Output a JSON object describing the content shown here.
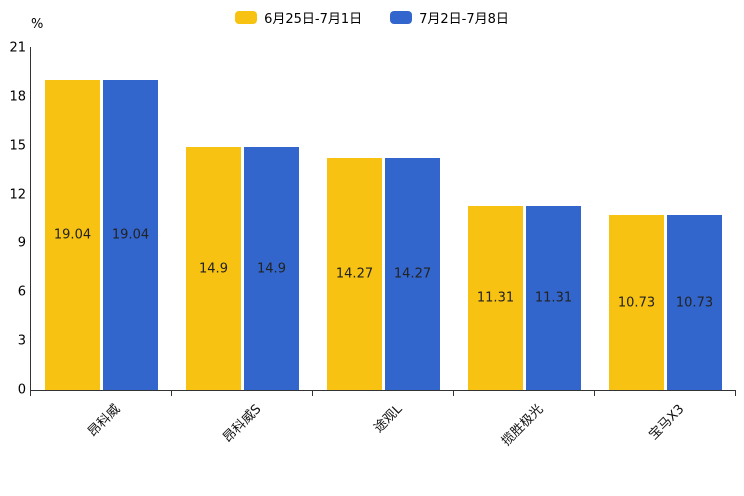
{
  "chart_data": {
    "type": "bar",
    "title": "",
    "unit": "%",
    "categories": [
      "昂科威",
      "昂科威S",
      "途观L",
      "揽胜极光",
      "宝马X3"
    ],
    "series": [
      {
        "name": "6月25日-7月1日",
        "color": "#F7C211",
        "values": [
          19.04,
          14.9,
          14.27,
          11.31,
          10.73
        ]
      },
      {
        "name": "7月2日-7月8日",
        "color": "#3366CC",
        "values": [
          19.04,
          14.9,
          14.27,
          11.31,
          10.73
        ]
      }
    ],
    "ylim": [
      0,
      21
    ],
    "yticks": [
      0,
      3,
      6,
      9,
      12,
      15,
      18,
      21
    ],
    "legend_position": "top",
    "grid": false
  }
}
